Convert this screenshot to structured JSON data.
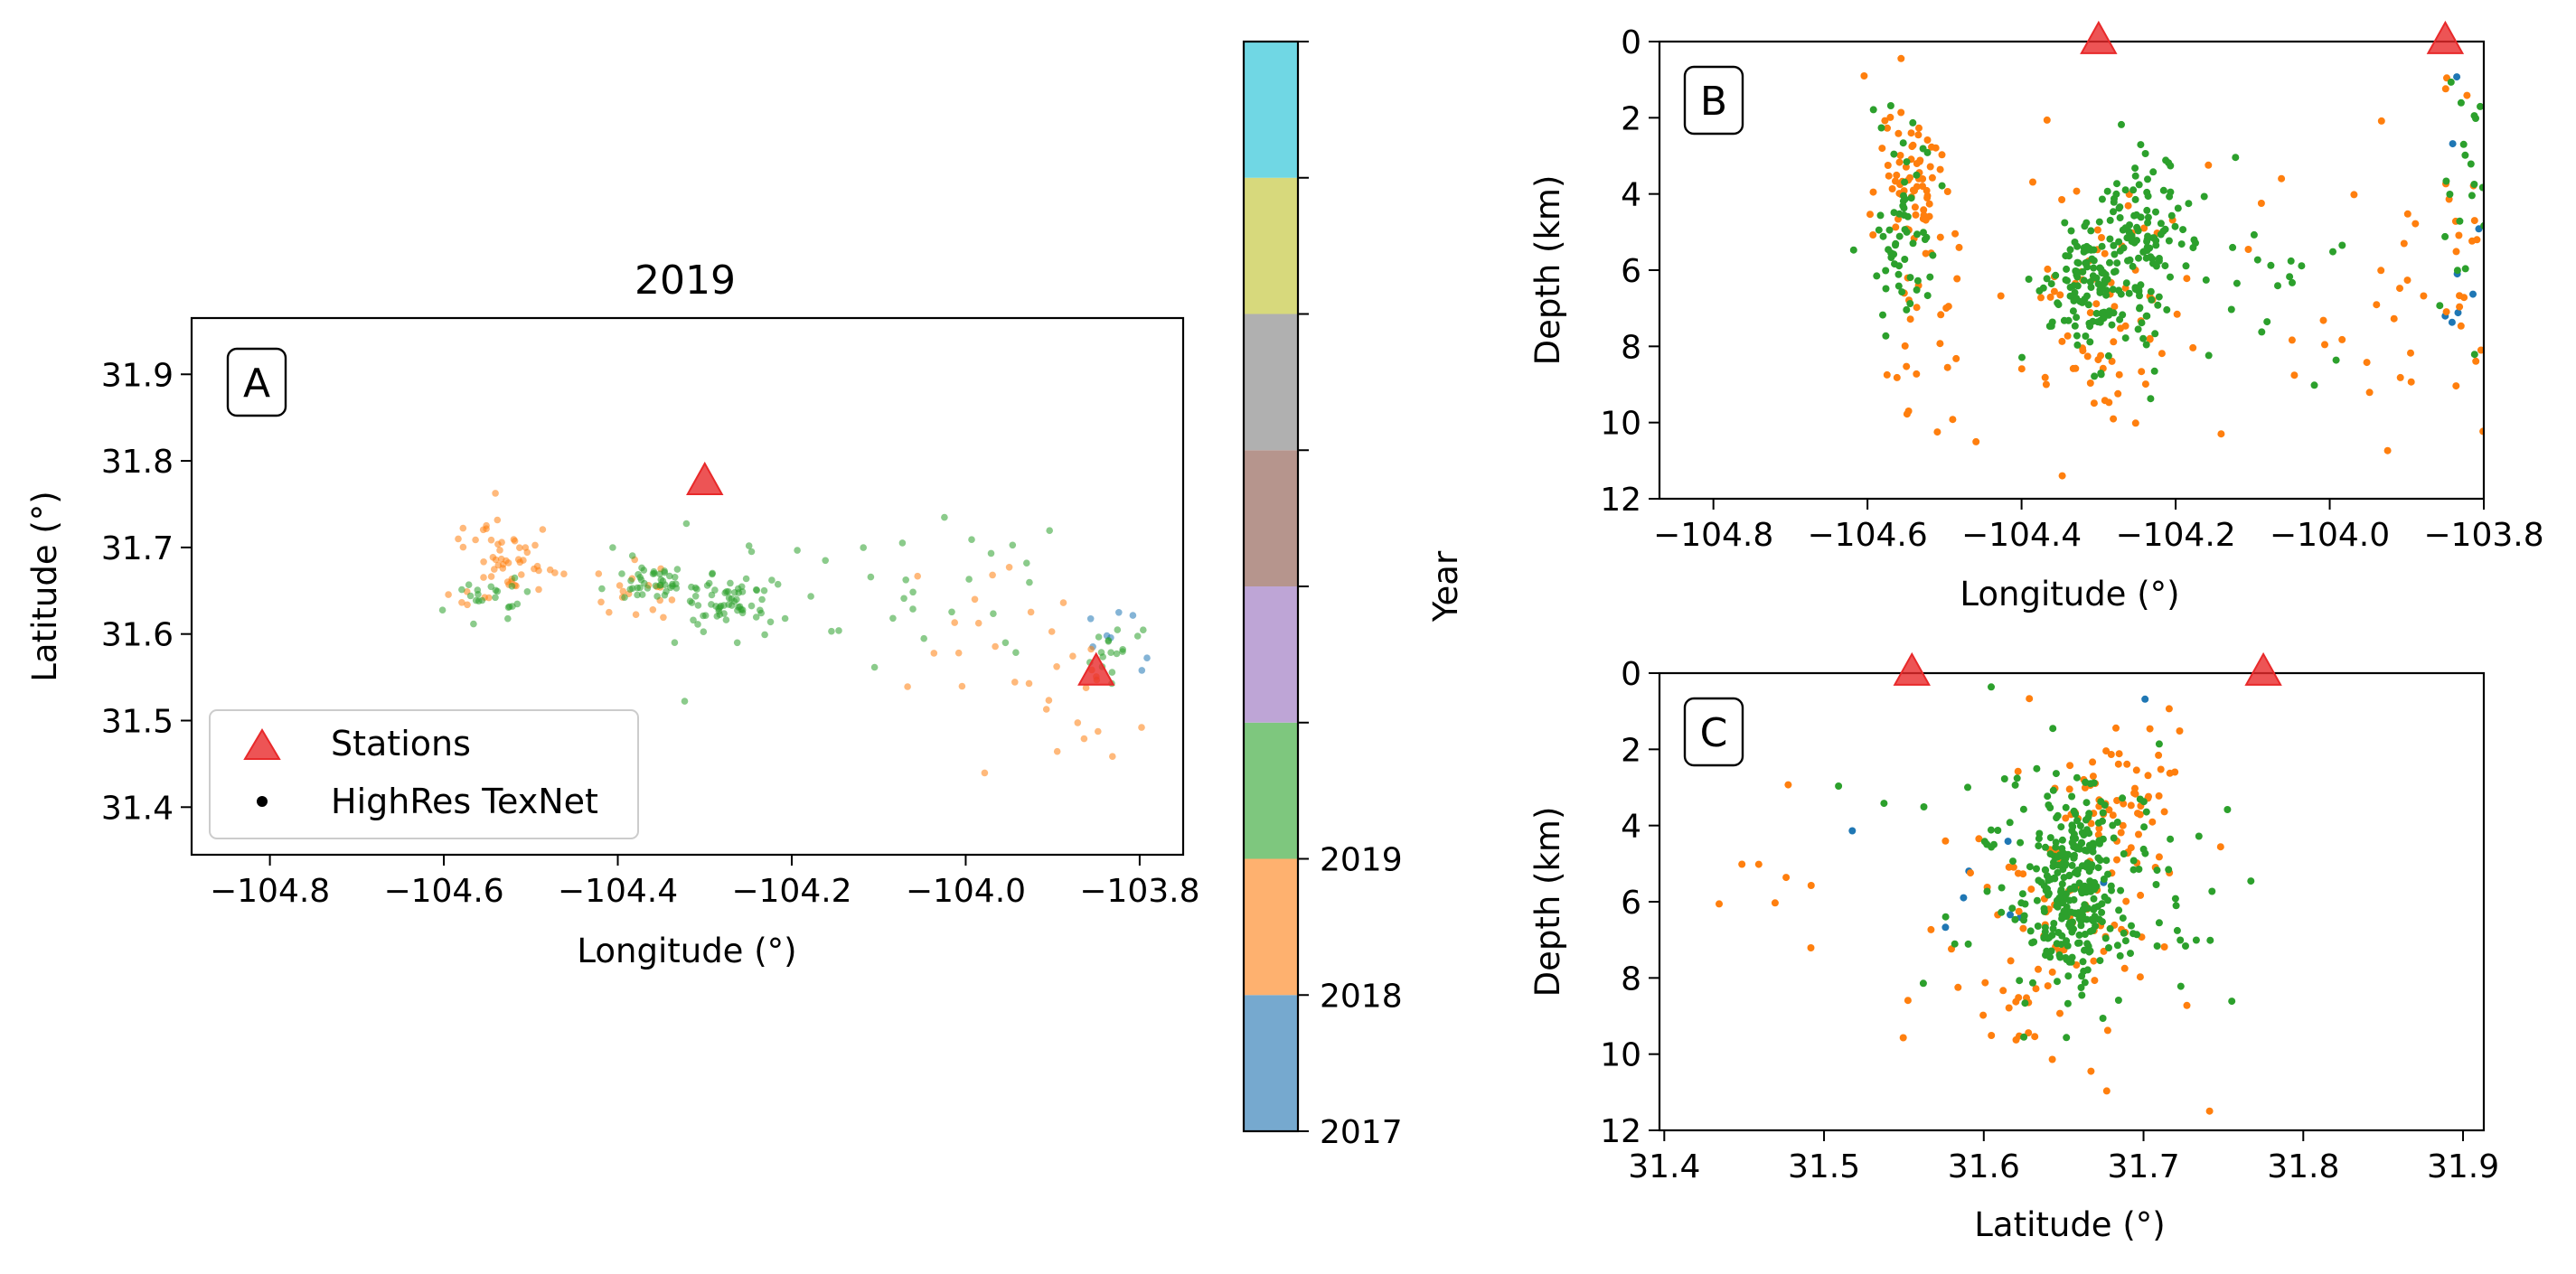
{
  "chart_data": [
    {
      "panel": "A",
      "type": "scatter",
      "title": "2019",
      "xlabel": "Longitude (°)",
      "ylabel": "Latitude (°)",
      "xlim": [
        -104.89,
        -103.75
      ],
      "ylim": [
        31.345,
        31.965
      ],
      "xticks": [
        "−104.8",
        "−104.6",
        "−104.4",
        "−104.2",
        "−104.0",
        "−103.8"
      ],
      "xtick_values": [
        -104.8,
        -104.6,
        -104.4,
        -104.2,
        -104.0,
        -103.8
      ],
      "yticks": [
        "31.4",
        "31.5",
        "31.6",
        "31.7",
        "31.8",
        "31.9"
      ],
      "ytick_values": [
        31.4,
        31.5,
        31.6,
        31.7,
        31.8,
        31.9
      ],
      "legend": {
        "placement": "lower-left",
        "entries": [
          {
            "label": "Stations",
            "marker": "triangle",
            "color": "#e8292a"
          },
          {
            "label": "HighRes TexNet",
            "marker": "dot",
            "color": "#000000"
          }
        ]
      },
      "stations": [
        {
          "x": -104.3,
          "y": 31.775
        },
        {
          "x": -103.85,
          "y": 31.555
        }
      ],
      "clusters": [
        {
          "year": 2019,
          "cx": -104.55,
          "cy": 31.64,
          "sx": 0.02,
          "sy": 0.015,
          "n": 22
        },
        {
          "year": 2019,
          "cx": -104.35,
          "cy": 31.66,
          "sx": 0.03,
          "sy": 0.012,
          "n": 45
        },
        {
          "year": 2019,
          "cx": -104.27,
          "cy": 31.64,
          "sx": 0.03,
          "sy": 0.012,
          "n": 55
        },
        {
          "year": 2019,
          "cx": -104.2,
          "cy": 31.65,
          "sx": 0.12,
          "sy": 0.05,
          "n": 25
        },
        {
          "year": 2019,
          "cx": -104.0,
          "cy": 31.66,
          "sx": 0.06,
          "sy": 0.05,
          "n": 14
        },
        {
          "year": 2019,
          "cx": -103.83,
          "cy": 31.58,
          "sx": 0.015,
          "sy": 0.015,
          "n": 16
        },
        {
          "year": 2018,
          "cx": -104.53,
          "cy": 31.68,
          "sx": 0.03,
          "sy": 0.03,
          "n": 55
        },
        {
          "year": 2018,
          "cx": -104.37,
          "cy": 31.65,
          "sx": 0.04,
          "sy": 0.02,
          "n": 18
        },
        {
          "year": 2018,
          "cx": -104.0,
          "cy": 31.59,
          "sx": 0.07,
          "sy": 0.05,
          "n": 14
        },
        {
          "year": 2018,
          "cx": -103.86,
          "cy": 31.55,
          "sx": 0.04,
          "sy": 0.05,
          "n": 18
        },
        {
          "year": 2017,
          "cx": -103.83,
          "cy": 31.6,
          "sx": 0.02,
          "sy": 0.03,
          "n": 8
        }
      ]
    },
    {
      "panel": "colorbar",
      "type": "colorbar",
      "label": "Year",
      "segment_colors": [
        "#76a9cf",
        "#feb16f",
        "#7ec77e",
        "#bea5d6",
        "#b6958d",
        "#b0b0b0",
        "#d7d97c",
        "#70d7e4"
      ],
      "tick_labels": [
        "2017",
        "2018",
        "2019"
      ]
    },
    {
      "panel": "B",
      "type": "scatter",
      "xlabel": "Longitude (°)",
      "ylabel": "Depth (km)",
      "xlim": [
        -104.87,
        -103.8
      ],
      "ylim": [
        12,
        0
      ],
      "xticks": [
        "−104.8",
        "−104.6",
        "−104.4",
        "−104.2",
        "−104.0",
        "−103.8"
      ],
      "xtick_values": [
        -104.8,
        -104.6,
        -104.4,
        -104.2,
        -104.0,
        -103.8
      ],
      "yticks": [
        "0",
        "2",
        "4",
        "6",
        "8",
        "10",
        "12"
      ],
      "ytick_values": [
        0,
        2,
        4,
        6,
        8,
        10,
        12
      ],
      "stations": [
        {
          "x": -104.3,
          "y": 0
        },
        {
          "x": -103.85,
          "y": 0
        }
      ],
      "clusters": [
        {
          "year": 2019,
          "cx": -104.55,
          "cy": 5.0,
          "sx": 0.02,
          "sy": 1.6,
          "n": 60
        },
        {
          "year": 2019,
          "cx": -104.31,
          "cy": 6.3,
          "sx": 0.03,
          "sy": 0.9,
          "n": 120
        },
        {
          "year": 2019,
          "cx": -104.25,
          "cy": 5.4,
          "sx": 0.025,
          "sy": 1.2,
          "n": 110
        },
        {
          "year": 2019,
          "cx": -104.1,
          "cy": 6.0,
          "sx": 0.08,
          "sy": 1.2,
          "n": 30
        },
        {
          "year": 2019,
          "cx": -103.82,
          "cy": 4.0,
          "sx": 0.02,
          "sy": 2.0,
          "n": 25
        },
        {
          "year": 2018,
          "cx": -104.54,
          "cy": 3.6,
          "sx": 0.025,
          "sy": 1.2,
          "n": 70
        },
        {
          "year": 2018,
          "cx": -104.52,
          "cy": 8.5,
          "sx": 0.04,
          "sy": 1.8,
          "n": 25
        },
        {
          "year": 2018,
          "cx": -104.32,
          "cy": 6.5,
          "sx": 0.05,
          "sy": 1.8,
          "n": 45
        },
        {
          "year": 2018,
          "cx": -104.25,
          "cy": 7.5,
          "sx": 0.06,
          "sy": 2.0,
          "n": 30
        },
        {
          "year": 2018,
          "cx": -103.95,
          "cy": 7.0,
          "sx": 0.08,
          "sy": 2.2,
          "n": 25
        },
        {
          "year": 2018,
          "cx": -103.83,
          "cy": 6.5,
          "sx": 0.02,
          "sy": 3.0,
          "n": 20
        },
        {
          "year": 2017,
          "cx": -103.83,
          "cy": 6.0,
          "sx": 0.02,
          "sy": 2.5,
          "n": 8
        }
      ]
    },
    {
      "panel": "C",
      "type": "scatter",
      "xlabel": "Latitude (°)",
      "ylabel": "Depth (km)",
      "xlim": [
        31.397,
        31.913
      ],
      "ylim": [
        12,
        0
      ],
      "xticks": [
        "31.4",
        "31.5",
        "31.6",
        "31.7",
        "31.8",
        "31.9"
      ],
      "xtick_values": [
        31.4,
        31.5,
        31.6,
        31.7,
        31.8,
        31.9
      ],
      "yticks": [
        "0",
        "2",
        "4",
        "6",
        "8",
        "10",
        "12"
      ],
      "ytick_values": [
        0,
        2,
        4,
        6,
        8,
        10,
        12
      ],
      "stations": [
        {
          "x": 31.555,
          "y": 0
        },
        {
          "x": 31.775,
          "y": 0
        }
      ],
      "clusters": [
        {
          "year": 2019,
          "cx": 31.655,
          "cy": 5.6,
          "sx": 0.012,
          "sy": 1.3,
          "n": 220
        },
        {
          "year": 2019,
          "cx": 31.66,
          "cy": 5.5,
          "sx": 0.04,
          "sy": 1.6,
          "n": 130
        },
        {
          "year": 2018,
          "cx": 31.68,
          "cy": 4.0,
          "sx": 0.02,
          "sy": 1.3,
          "n": 70
        },
        {
          "year": 2018,
          "cx": 31.64,
          "cy": 7.0,
          "sx": 0.04,
          "sy": 2.2,
          "n": 80
        },
        {
          "year": 2018,
          "cx": 31.46,
          "cy": 5.0,
          "sx": 0.02,
          "sy": 1.5,
          "n": 8
        },
        {
          "year": 2017,
          "cx": 31.6,
          "cy": 5.5,
          "sx": 0.05,
          "sy": 2.5,
          "n": 10
        }
      ]
    }
  ],
  "year_colors": {
    "2017": "#1f77b4",
    "2018": "#ff7f0e",
    "2019": "#2ca02c"
  },
  "station_color": "#e8292a"
}
